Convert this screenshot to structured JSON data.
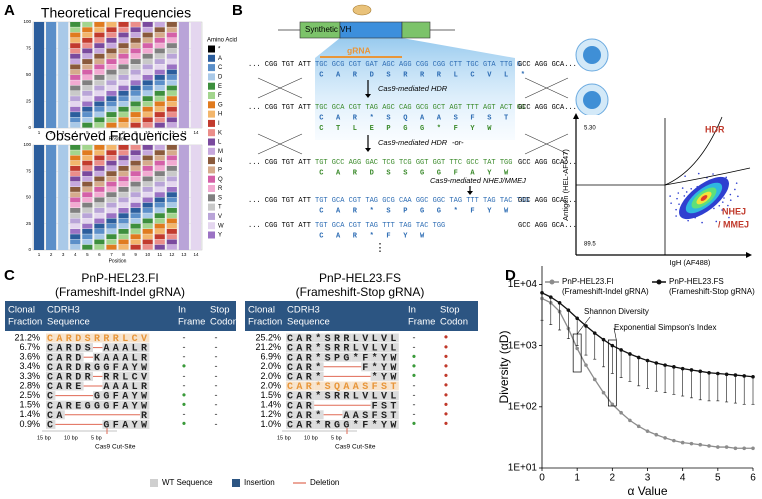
{
  "panel_labels": [
    "A",
    "B",
    "C",
    "D"
  ],
  "panel_a": {
    "titles": [
      "Theoretical Frequencies",
      "Observed Frequencies"
    ],
    "yticks": [
      0,
      25,
      50,
      75,
      100
    ],
    "positions": [
      1,
      2,
      3,
      4,
      5,
      6,
      7,
      8,
      9,
      10,
      11,
      12,
      13,
      14
    ],
    "xlabel": "Position",
    "legend_title": "Amino Acid",
    "amino_acids": [
      {
        "label": "*",
        "color": "#000000"
      },
      {
        "label": "A",
        "color": "#2b5d9c"
      },
      {
        "label": "C",
        "color": "#5b8fc9"
      },
      {
        "label": "D",
        "color": "#a9c9e8"
      },
      {
        "label": "E",
        "color": "#3d8f3d"
      },
      {
        "label": "F",
        "color": "#a3d58e"
      },
      {
        "label": "G",
        "color": "#e07b1f"
      },
      {
        "label": "H",
        "color": "#f3b66c"
      },
      {
        "label": "I",
        "color": "#c23b2e"
      },
      {
        "label": "K",
        "color": "#eb8e8a"
      },
      {
        "label": "L",
        "color": "#7a4a9e"
      },
      {
        "label": "M",
        "color": "#c6a8de"
      },
      {
        "label": "N",
        "color": "#8a5a3c"
      },
      {
        "label": "P",
        "color": "#d6ab8c"
      },
      {
        "label": "Q",
        "color": "#d460a8"
      },
      {
        "label": "R",
        "color": "#f2aad1"
      },
      {
        "label": "S",
        "color": "#808080"
      },
      {
        "label": "T",
        "color": "#c9c9c9"
      },
      {
        "label": "V",
        "color": "#b9a4d8"
      },
      {
        "label": "W",
        "color": "#e4d6ef"
      },
      {
        "label": "Y",
        "color": "#9b72c4"
      }
    ]
  },
  "panel_b": {
    "construct": "Synthetic VH",
    "grna": "gRNA",
    "left_flank": "... CGG TGT ATT",
    "right_flank": "GCC AGG GCA...",
    "rows": [
      {
        "dna": "TGC GCG CGT GAT AGC AGG CGG CGG CTT TGC GTA TTG G",
        "aa": [
          "C A R D S R R R L C V L *"
        ]
      },
      {
        "dna": "TGC GCA CGT TAG AGC CAG GCG GCT AGT TTT AGT ACT GG",
        "aa": [
          "C A R * S Q A A S F S T",
          "C T L E P G G * F Y W"
        ]
      },
      {
        "dna": "TGT GCC AGG GAC TCG TCG GGT GGT TTC GCC TAT TGG",
        "aa": [
          "C A R D S S G G F A Y W"
        ]
      },
      {
        "dna": "TGT GCA CGT TAG GCG CAA GGC GGC TAG TTT TAG TAC TGG",
        "aa": [
          "C A R * S P G G * F Y W"
        ]
      },
      {
        "dna": "TGT GCA CGT TAG TTT TAG TAC TGG",
        "aa": [
          "C A R * F Y W"
        ]
      }
    ],
    "steps": [
      "Cas9-mediated HDR",
      "Cas9-mediated HDR",
      "-or-",
      "Cas9-mediated NHEJ/MMEJ"
    ],
    "ellipsis": "⋮",
    "flow": {
      "gates": [
        "HDR",
        "NHEJ",
        "/ MMEJ"
      ],
      "percents": [
        "5.30",
        "89.5"
      ],
      "ylabel": "Antigen (HEL-AF647)",
      "xlabel": "IgH (AF488)"
    }
  },
  "panel_c": {
    "headers": [
      [
        "Clonal",
        "Fraction"
      ],
      [
        "CDRH3",
        "Sequence"
      ],
      [
        "In",
        "Frame"
      ],
      [
        "Stop",
        "Codon"
      ]
    ],
    "tables": [
      {
        "title": "PnP-HEL23.FI",
        "subtitle": "(Frameshift-Indel gRNA)",
        "rows": [
          [
            "21.2%",
            "CARDSRRRLCV",
            "-",
            "-"
          ],
          [
            "6.7%",
            "CARDS AAALR",
            "-",
            "-"
          ],
          [
            "3.6%",
            "CARD KAAALR",
            "-",
            "-"
          ],
          [
            "3.4%",
            "CARDRGGFAYW",
            "•",
            "-"
          ],
          [
            "3.3%",
            "CARDR RRLCV",
            "-",
            "-"
          ],
          [
            "2.8%",
            "CARE  AAALR",
            "-",
            "-"
          ],
          [
            "2.5%",
            "C    GGFAYW",
            "•",
            "-"
          ],
          [
            "1.5%",
            "CAREGGGFAYW",
            "•",
            "-"
          ],
          [
            "1.4%",
            "CA        R",
            "-",
            "-"
          ],
          [
            "0.9%",
            "C     GFAYW",
            "•",
            "-"
          ]
        ]
      },
      {
        "title": "PnP-HEL23.FS",
        "subtitle": "(Frameshift-Stop gRNA)",
        "rows": [
          [
            "25.2%",
            "CAR*SRRLVLVL",
            "-",
            "•"
          ],
          [
            "21.2%",
            "CAR*SRRLVLVL",
            "-",
            "•"
          ],
          [
            "6.9%",
            "CAR*SPG*F*YW",
            "•",
            "•"
          ],
          [
            "2.0%",
            "CAR*    F*YW",
            "•",
            "•"
          ],
          [
            "2.0%",
            "CAR*     *YW",
            "•",
            "•"
          ],
          [
            "2.0%",
            "CAR*SQAASFST",
            "-",
            "•"
          ],
          [
            "1.5%",
            "CAR*SRRLVLVL",
            "-",
            "•"
          ],
          [
            "1.4%",
            "CAR      FST",
            "-",
            "•"
          ],
          [
            "1.2%",
            "CAR*  AASFST",
            "-",
            "•"
          ],
          [
            "1.0%",
            "CAR*RGG*F*YW",
            "•",
            "•"
          ]
        ]
      }
    ],
    "axis_ticks": [
      "15 bp",
      "10 bp",
      "5 bp"
    ],
    "axis_label": "Cas9 Cut-Site",
    "legend": [
      "WT Sequence",
      "Insertion",
      "Deletion"
    ]
  },
  "chart_data": {
    "type": "line",
    "xlabel": "α Value",
    "ylabel": "Diversity (αD)",
    "log_y": true,
    "x": [
      0,
      0.25,
      0.5,
      0.75,
      1,
      1.25,
      1.5,
      1.75,
      2,
      2.25,
      2.5,
      2.75,
      3,
      3.25,
      3.5,
      3.75,
      4,
      4.25,
      4.5,
      4.75,
      5,
      5.25,
      5.5,
      5.75,
      6
    ],
    "xlim": [
      0,
      6
    ],
    "xticks": [
      0,
      1,
      2,
      3,
      4,
      5,
      6
    ],
    "ylim": [
      10,
      20000
    ],
    "yticks": [
      {
        "value": 10,
        "label": "1E+01"
      },
      {
        "value": 100,
        "label": "1E+02"
      },
      {
        "value": 1000,
        "label": "1E+03"
      },
      {
        "value": 10000,
        "label": "1E+04"
      }
    ],
    "series": [
      {
        "name": "PnP-HEL23.FI",
        "description": "(Frameshift-Indel gRNA)",
        "color": "#8c8c8c",
        "values": [
          5900,
          5000,
          3600,
          1900,
          900,
          480,
          280,
          170,
          110,
          80,
          60,
          48,
          40,
          35,
          31,
          28,
          26,
          25,
          24,
          23,
          22,
          22,
          21,
          21,
          21
        ]
      },
      {
        "name": "PnP-HEL23.FS",
        "description": "(Frameshift-Stop gRNA)",
        "color": "#111111",
        "values": [
          7300,
          6200,
          5000,
          3800,
          2800,
          2100,
          1600,
          1250,
          1000,
          850,
          730,
          640,
          570,
          520,
          480,
          450,
          420,
          400,
          380,
          360,
          350,
          340,
          330,
          320,
          310
        ],
        "errors": [
          4700,
          4000,
          3200,
          2500,
          1800,
          1400,
          1000,
          800,
          650,
          550,
          470,
          420,
          370,
          340,
          310,
          290,
          270,
          260,
          250,
          235,
          225,
          220,
          215,
          210,
          200
        ]
      }
    ],
    "annotations": [
      "Shannon Diversity",
      "Exponential Simpson's Index"
    ]
  }
}
